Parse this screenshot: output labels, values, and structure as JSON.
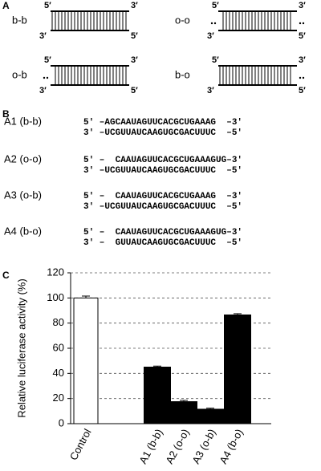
{
  "panel_a": {
    "label": "A",
    "duplexes": [
      {
        "name": "b-b",
        "top_left": "5′",
        "top_right": "3′",
        "bottom_left": "3′",
        "bottom_right": "5′"
      },
      {
        "name": "o-o",
        "top_left": "5′",
        "top_right": "3′",
        "bottom_left": "3′",
        "bottom_right": "5′"
      },
      {
        "name": "o-b",
        "top_left": "5′",
        "top_right": "3′",
        "bottom_left": "3′",
        "bottom_right": "5′"
      },
      {
        "name": "b-o",
        "top_left": "5′",
        "top_right": "3′",
        "bottom_left": "3′",
        "bottom_right": "5′"
      }
    ]
  },
  "panel_b": {
    "label": "B",
    "entries": [
      {
        "name": "A1 (b-b)",
        "lines": [
          "5′ –AGCAAUAGUUCACGCUGAAAG  –3′",
          "3′ –UCGUUAUCAAGUGCGACUUUC  –5′"
        ]
      },
      {
        "name": "A2 (o-o)",
        "lines": [
          "5′ –  CAAUAGUUCACGCUGAAAGUG–3′",
          "3′ –UCGUUAUCAAGUGCGACUUUC  –5′"
        ]
      },
      {
        "name": "A3 (o-b)",
        "lines": [
          "5′ –  CAAUAGUUCACGCUGAAAG  –3′",
          "3′ –UCGUUAUCAAGUGCGACUUUC  –5′"
        ]
      },
      {
        "name": "A4 (b-o)",
        "lines": [
          "5′ –  CAAUAGUUCACGCUGAAAGUG–3′",
          "3′ –  GUUAUCAAGUGCGACUUUC  –5′"
        ]
      }
    ]
  },
  "chart_data": {
    "type": "bar",
    "panel_label": "C",
    "y_label": "Relative luciferase activity (%)",
    "categories": [
      "Control",
      "A1 (b-b)",
      "A2 (o-o)",
      "A3 (o-b)",
      "A4 (b-o)"
    ],
    "values": [
      100,
      45,
      17.5,
      11.5,
      86.5
    ],
    "errors": [
      1.5,
      0.8,
      1,
      0.8,
      1
    ],
    "colors": [
      "#ffffff",
      "#000000",
      "#000000",
      "#000000",
      "#000000"
    ],
    "ylim": [
      0,
      120
    ],
    "yticks": [
      0,
      20,
      40,
      60,
      80,
      100,
      120
    ],
    "grid": true
  }
}
